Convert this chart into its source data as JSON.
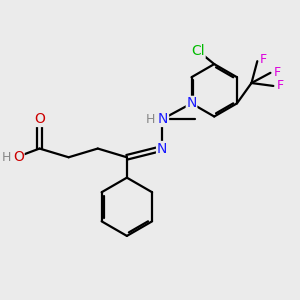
{
  "bg_color": "#ebebeb",
  "bond_color": "#000000",
  "atom_colors": {
    "N": "#1a1aff",
    "O": "#cc0000",
    "H": "#888888",
    "Cl": "#00bb00",
    "F": "#dd00dd"
  },
  "lw": 1.6,
  "fs": 10,
  "fs_small": 9
}
